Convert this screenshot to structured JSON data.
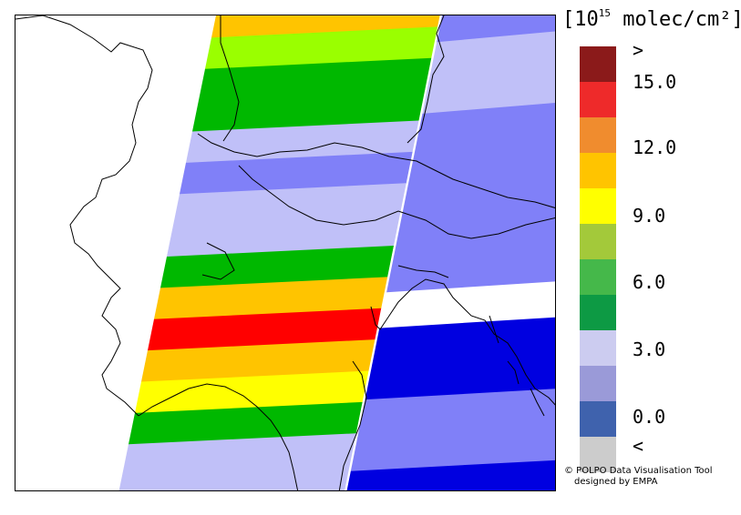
{
  "legend": {
    "title_prefix": "[10",
    "title_exponent": "15",
    "title_suffix": " molec/cm²]",
    "labels": [
      ">",
      "15.0",
      "12.0",
      "9.0",
      "6.0",
      "3.0",
      "0.0",
      "<"
    ],
    "colors": [
      "#8b1a1a",
      "#ee2a2a",
      "#f08c2e",
      "#ffc400",
      "#ffff00",
      "#a3c93a",
      "#45b84a",
      "#0d9a44",
      "#ccccf0",
      "#9a9ad8",
      "#3f62ad",
      "#cccccc"
    ]
  },
  "credit": {
    "line1": "© POLPO Data Visualisation Tool",
    "line2": "designed by EMPA"
  },
  "map": {
    "color_scale": {
      "min": 0.0,
      "max": 15.0,
      "step": 1.5
    },
    "colors": {
      "green": "#00b800",
      "lightgreen": "#9aff00",
      "orange": "#ffc400",
      "red": "#ff0000",
      "yellow": "#ffff00",
      "lavender": "#c0c0f8",
      "periwinkle": "#8080f8",
      "blue": "#0000e0",
      "white": "#ffffff"
    },
    "left_swath_bands": [
      "orange",
      "lightgreen",
      "green",
      "green",
      "lavender",
      "periwinkle",
      "lavender",
      "lavender",
      "green",
      "orange",
      "red",
      "orange",
      "yellow",
      "green",
      "lavender",
      "lavender"
    ],
    "right_swath_bands": [
      "periwinkle",
      "lavender",
      "lavender",
      "periwinkle",
      "periwinkle",
      "periwinkle",
      "periwinkle",
      "periwinkle",
      "white",
      "blue",
      "blue",
      "periwinkle",
      "periwinkle",
      "blue"
    ]
  }
}
